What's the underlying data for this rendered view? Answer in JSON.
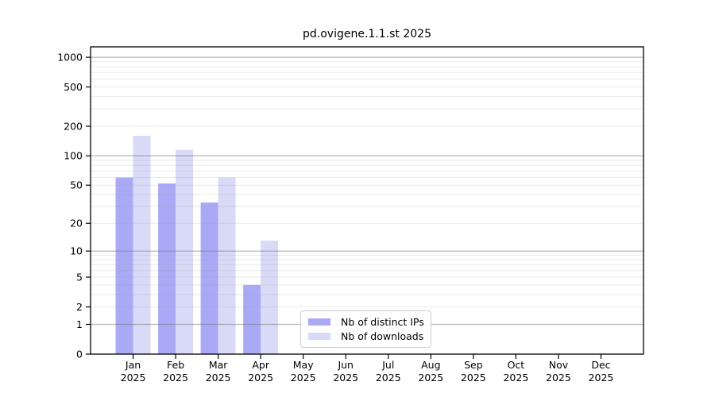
{
  "page": {
    "background_color": "#ffffff"
  },
  "chart_data": {
    "type": "bar",
    "title": "pd.ovigene.1.1.st 2025",
    "categories": [
      "Jan",
      "Feb",
      "Mar",
      "Apr",
      "May",
      "Jun",
      "Jul",
      "Aug",
      "Sep",
      "Oct",
      "Nov",
      "Dec"
    ],
    "year_label": "2025",
    "series": [
      {
        "name": "Nb of distinct IPs",
        "color": "#a9a9f6",
        "values": [
          60,
          52,
          33,
          4,
          0,
          0,
          0,
          0,
          0,
          0,
          0,
          0
        ]
      },
      {
        "name": "Nb of downloads",
        "color": "#d9d9f8",
        "values": [
          160,
          115,
          60,
          13,
          0,
          0,
          0,
          0,
          0,
          0,
          0,
          0
        ]
      }
    ],
    "yticks": [
      0,
      1,
      2,
      5,
      10,
      20,
      50,
      100,
      200,
      500,
      1000
    ],
    "yscale": "log10(value+1)",
    "ylim": [
      0,
      1274
    ],
    "grid": true,
    "gridline_major_values": [
      1,
      10,
      100,
      1000
    ],
    "legend_position": "bottom-center",
    "colors": {
      "axis": "#000000",
      "text": "#000000",
      "grid_major": "rgba(120,120,120,0.55)",
      "grid_minor": "rgba(160,160,160,0.22)",
      "legend_border": "#cccccc"
    }
  }
}
